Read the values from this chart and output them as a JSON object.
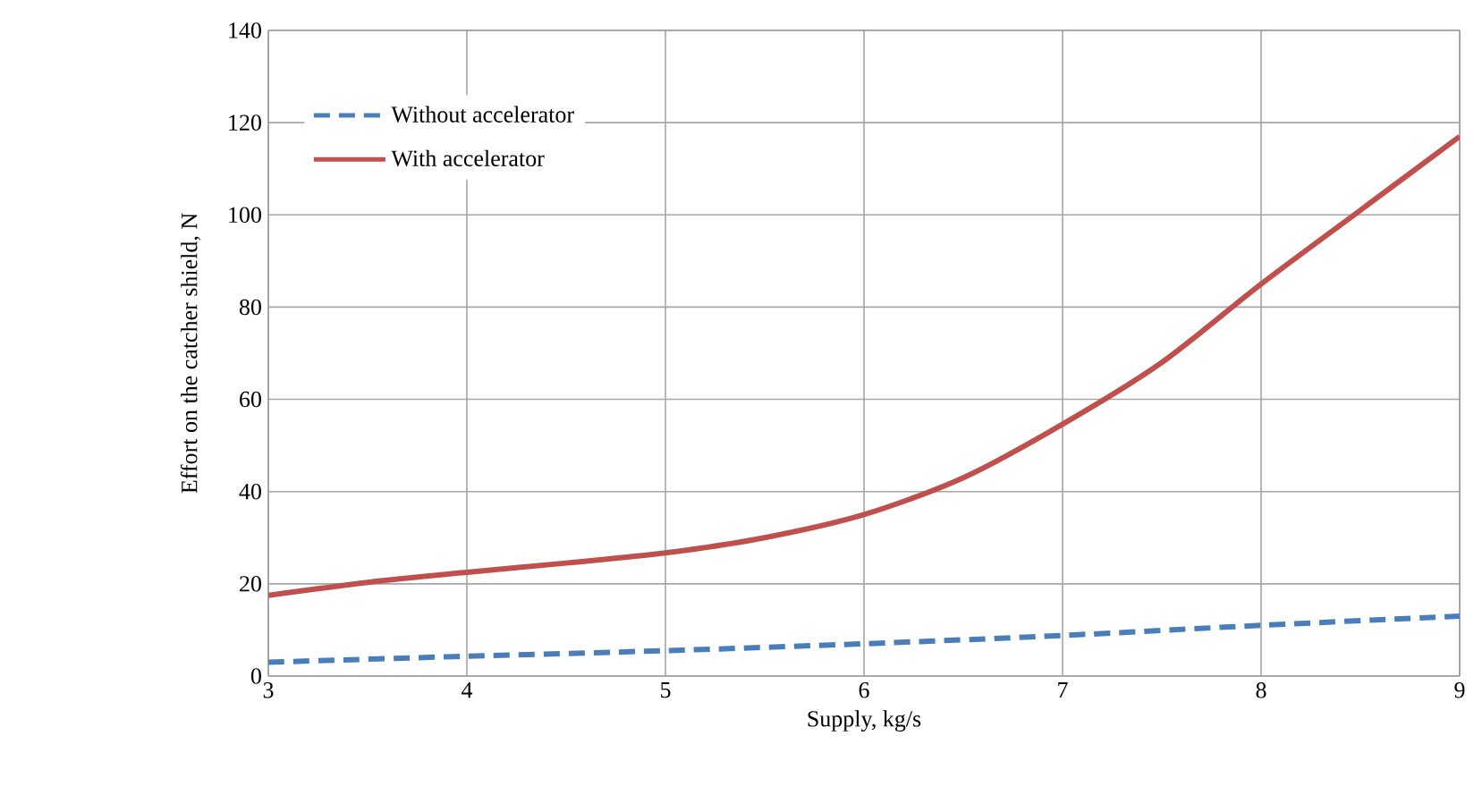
{
  "chart_data": {
    "type": "line",
    "xlabel": "Supply, kg/s",
    "ylabel": "Effort on the catcher shield, N",
    "xlim": [
      3,
      9
    ],
    "xticks": [
      3,
      4,
      5,
      6,
      7,
      8,
      9
    ],
    "ylim": [
      0,
      140
    ],
    "yticks": [
      0,
      20,
      40,
      60,
      80,
      100,
      120,
      140
    ],
    "grid": true,
    "legend": "top left",
    "marker": "none",
    "series": [
      {
        "name": "Without accelerator",
        "color": "#4a7ebb",
        "line_style": "dashed",
        "x": [
          3,
          4,
          5,
          6,
          7,
          8,
          9
        ],
        "values": [
          3,
          4.3,
          5.5,
          7,
          8.8,
          11,
          13
        ]
      },
      {
        "name": "With accelerator",
        "color": "#c0504d",
        "line_style": "solid",
        "x": [
          3,
          3.5,
          4,
          4.5,
          5,
          5.5,
          6,
          6.5,
          7,
          7.5,
          8,
          8.5,
          9
        ],
        "values": [
          17.5,
          20.3,
          22.5,
          24.5,
          26.7,
          30,
          35,
          43,
          54.6,
          68,
          85,
          101,
          117
        ]
      }
    ]
  }
}
